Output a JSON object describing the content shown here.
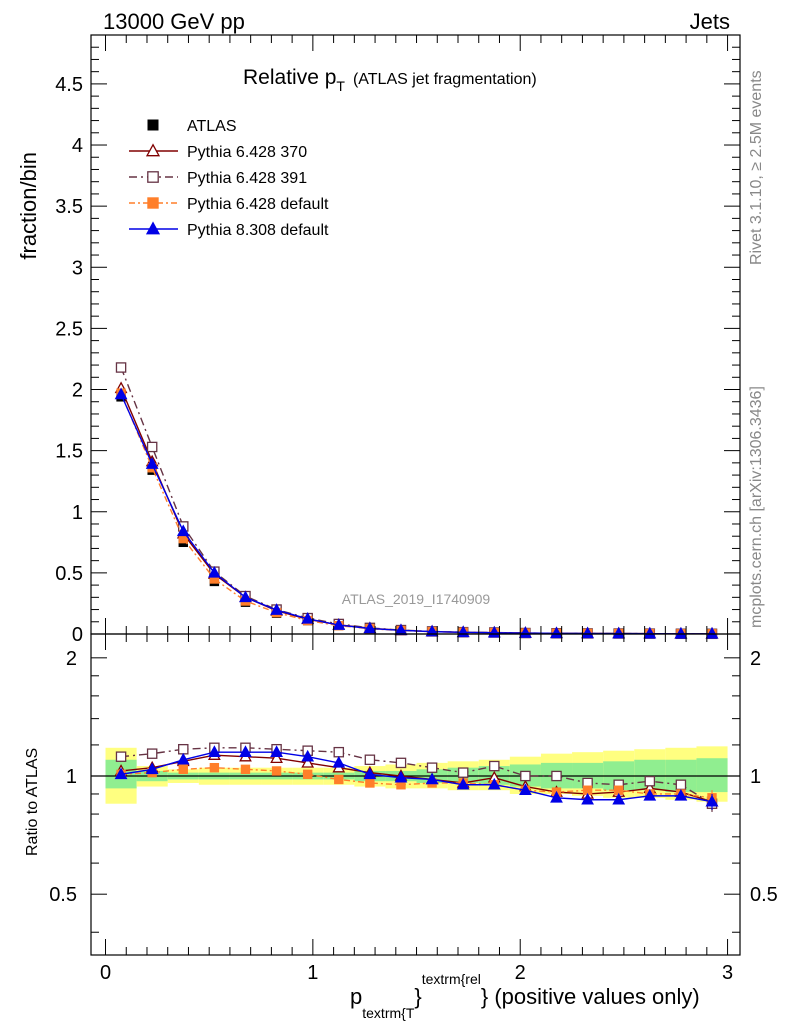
{
  "header": {
    "left": "13000 GeV pp",
    "right": "Jets"
  },
  "side_text": {
    "rivet": "Rivet 3.1.10, ≥ 2.5M events",
    "mcplots": "mcplots.cern.ch [arXiv:1306.3436]"
  },
  "watermark": "ATLAS_2019_I1740909",
  "chart_data": [
    {
      "type": "line",
      "title_main": "Relative p",
      "title_sub": "T",
      "title_rest": "(ATLAS jet fragmentation)",
      "ylabel": "fraction/bin",
      "xlim": [
        -0.07,
        3.06
      ],
      "ylim": [
        0,
        4.9
      ],
      "y_ticks": [
        "0",
        "0.5",
        "1",
        "1.5",
        "2",
        "2.5",
        "3",
        "3.5",
        "4",
        "4.5"
      ],
      "y_tick_values": [
        0,
        0.5,
        1,
        1.5,
        2,
        2.5,
        3,
        3.5,
        4,
        4.5
      ],
      "x": [
        0.075,
        0.225,
        0.375,
        0.525,
        0.675,
        0.825,
        0.975,
        1.125,
        1.275,
        1.425,
        1.575,
        1.725,
        1.875,
        2.025,
        2.175,
        2.325,
        2.475,
        2.625,
        2.775,
        2.925
      ],
      "series": [
        {
          "name": "ATLAS",
          "color": "#000000",
          "marker": "square-filled",
          "values": [
            1.94,
            1.34,
            0.75,
            0.43,
            0.26,
            0.17,
            0.11,
            0.07,
            0.045,
            0.03,
            0.02,
            0.015,
            0.011,
            0.008,
            0.006,
            0.005,
            0.004,
            0.003,
            0.002,
            0.002
          ]
        },
        {
          "name": "Pythia 6.428 370",
          "color": "#800000",
          "marker": "triangle-open",
          "dash": "",
          "values": [
            2.01,
            1.41,
            0.82,
            0.49,
            0.3,
            0.19,
            0.12,
            0.075,
            0.047,
            0.03,
            0.02,
            0.014,
            0.011,
            0.0078,
            0.0055,
            0.0045,
            0.0036,
            0.0028,
            0.0018,
            0.0017
          ]
        },
        {
          "name": "Pythia 6.428 391",
          "color": "#663344",
          "marker": "square-open",
          "dash": "8,4,2,4",
          "values": [
            2.18,
            1.53,
            0.88,
            0.51,
            0.31,
            0.2,
            0.13,
            0.082,
            0.05,
            0.032,
            0.021,
            0.015,
            0.012,
            0.008,
            0.006,
            0.0048,
            0.0038,
            0.0029,
            0.0019,
            0.0017
          ]
        },
        {
          "name": "Pythia 6.428 default",
          "color": "#ff7f2a",
          "marker": "square-filled",
          "dash": "6,3,2,3",
          "values": [
            1.97,
            1.36,
            0.78,
            0.45,
            0.27,
            0.175,
            0.11,
            0.068,
            0.043,
            0.028,
            0.019,
            0.014,
            0.0105,
            0.0074,
            0.0055,
            0.0045,
            0.0036,
            0.0027,
            0.0018,
            0.0017
          ]
        },
        {
          "name": "Pythia 8.308 default",
          "color": "#0000e6",
          "marker": "triangle-filled",
          "dash": "",
          "values": [
            1.96,
            1.39,
            0.84,
            0.5,
            0.3,
            0.196,
            0.124,
            0.073,
            0.045,
            0.03,
            0.0195,
            0.014,
            0.0105,
            0.0074,
            0.0053,
            0.0044,
            0.0035,
            0.0027,
            0.0018,
            0.0017
          ]
        }
      ]
    },
    {
      "type": "line",
      "ylabel": "Ratio to ATLAS",
      "xlabel_main": "p",
      "xlabel_sub": "textrm{T",
      "xlabel_sup": "textrm{rel",
      "xlabel_close": "}",
      "xlabel_tail": "} (positive values only)",
      "xlim": [
        -0.07,
        3.06
      ],
      "ylim": [
        0.35,
        2.3
      ],
      "log_y": true,
      "x_ticks": [
        "0",
        "1",
        "2",
        "3"
      ],
      "x_tick_values": [
        0,
        1,
        2,
        3
      ],
      "y_ticks": [
        "0.5",
        "1",
        "2"
      ],
      "y_tick_values": [
        0.5,
        1,
        2
      ],
      "x": [
        0.075,
        0.225,
        0.375,
        0.525,
        0.675,
        0.825,
        0.975,
        1.125,
        1.275,
        1.425,
        1.575,
        1.725,
        1.875,
        2.025,
        2.175,
        2.325,
        2.475,
        2.625,
        2.775,
        2.925
      ],
      "bin_edges": [
        0,
        0.15,
        0.3,
        0.45,
        0.6,
        0.75,
        0.9,
        1.05,
        1.2,
        1.35,
        1.5,
        1.65,
        1.8,
        1.95,
        2.1,
        2.25,
        2.4,
        2.55,
        2.7,
        2.85,
        3.0
      ],
      "band_yellow_lo": [
        0.85,
        0.94,
        0.96,
        0.95,
        0.95,
        0.95,
        0.95,
        0.95,
        0.94,
        0.93,
        0.93,
        0.92,
        0.92,
        0.9,
        0.9,
        0.89,
        0.88,
        0.88,
        0.87,
        0.86
      ],
      "band_yellow_hi": [
        1.18,
        1.06,
        1.04,
        1.05,
        1.05,
        1.05,
        1.05,
        1.05,
        1.06,
        1.07,
        1.08,
        1.09,
        1.1,
        1.12,
        1.14,
        1.15,
        1.16,
        1.17,
        1.18,
        1.19
      ],
      "band_green_lo": [
        0.93,
        0.97,
        0.98,
        0.98,
        0.98,
        0.98,
        0.98,
        0.98,
        0.97,
        0.97,
        0.96,
        0.96,
        0.95,
        0.94,
        0.93,
        0.93,
        0.92,
        0.92,
        0.91,
        0.91
      ],
      "band_green_hi": [
        1.1,
        1.03,
        1.02,
        1.02,
        1.02,
        1.02,
        1.02,
        1.02,
        1.03,
        1.03,
        1.04,
        1.05,
        1.06,
        1.07,
        1.08,
        1.08,
        1.09,
        1.1,
        1.1,
        1.11
      ],
      "series": [
        {
          "name": "Pythia 6.428 370",
          "color": "#800000",
          "marker": "triangle-open",
          "dash": "",
          "values": [
            1.03,
            1.05,
            1.09,
            1.13,
            1.12,
            1.11,
            1.08,
            1.05,
            1.02,
            1.0,
            0.98,
            0.96,
            0.99,
            0.94,
            0.91,
            0.9,
            0.91,
            0.93,
            0.91,
            0.86
          ],
          "errors": [
            0.005,
            0.005,
            0.005,
            0.005,
            0.005,
            0.005,
            0.005,
            0.005,
            0.005,
            0.005,
            0.005,
            0.005,
            0.005,
            0.01,
            0.01,
            0.01,
            0.01,
            0.015,
            0.02,
            0.04
          ]
        },
        {
          "name": "Pythia 6.428 391",
          "color": "#663344",
          "marker": "square-open",
          "dash": "8,4,2,4",
          "values": [
            1.12,
            1.14,
            1.17,
            1.18,
            1.18,
            1.17,
            1.16,
            1.15,
            1.1,
            1.08,
            1.05,
            1.02,
            1.06,
            1.0,
            1.0,
            0.96,
            0.95,
            0.97,
            0.95,
            0.85
          ],
          "errors": [
            0.005,
            0.005,
            0.005,
            0.005,
            0.005,
            0.005,
            0.005,
            0.005,
            0.005,
            0.005,
            0.005,
            0.005,
            0.005,
            0.01,
            0.01,
            0.01,
            0.01,
            0.015,
            0.02,
            0.04
          ]
        },
        {
          "name": "Pythia 6.428 default",
          "color": "#ff7f2a",
          "marker": "square-filled",
          "dash": "6,3,2,3",
          "values": [
            1.01,
            1.02,
            1.04,
            1.05,
            1.04,
            1.03,
            1.01,
            0.98,
            0.96,
            0.95,
            0.96,
            0.96,
            0.95,
            0.92,
            0.91,
            0.92,
            0.92,
            0.9,
            0.9,
            0.88
          ],
          "errors": [
            0.005,
            0.005,
            0.005,
            0.005,
            0.005,
            0.005,
            0.005,
            0.005,
            0.005,
            0.005,
            0.005,
            0.005,
            0.005,
            0.01,
            0.01,
            0.01,
            0.01,
            0.015,
            0.02,
            0.04
          ]
        },
        {
          "name": "Pythia 8.308 default",
          "color": "#0000e6",
          "marker": "triangle-filled",
          "dash": "",
          "values": [
            1.01,
            1.04,
            1.1,
            1.15,
            1.15,
            1.15,
            1.12,
            1.08,
            1.01,
            0.99,
            0.98,
            0.95,
            0.95,
            0.92,
            0.88,
            0.87,
            0.87,
            0.89,
            0.89,
            0.86
          ],
          "errors": [
            0.005,
            0.005,
            0.005,
            0.005,
            0.005,
            0.005,
            0.005,
            0.005,
            0.005,
            0.005,
            0.005,
            0.005,
            0.005,
            0.01,
            0.01,
            0.01,
            0.01,
            0.015,
            0.02,
            0.04
          ]
        }
      ]
    }
  ]
}
